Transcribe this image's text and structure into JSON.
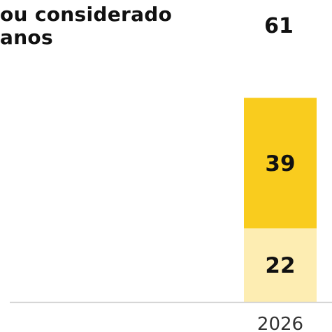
{
  "chart_data": {
    "type": "bar",
    "stacked": true,
    "categories": [
      "2026"
    ],
    "series": [
      {
        "values": [
          22
        ],
        "color": "#fdedb2"
      },
      {
        "values": [
          39
        ],
        "color": "#f9cc1e"
      }
    ],
    "totals": [
      61
    ],
    "legend_text": "ou considerado\nanos",
    "grid": false
  }
}
